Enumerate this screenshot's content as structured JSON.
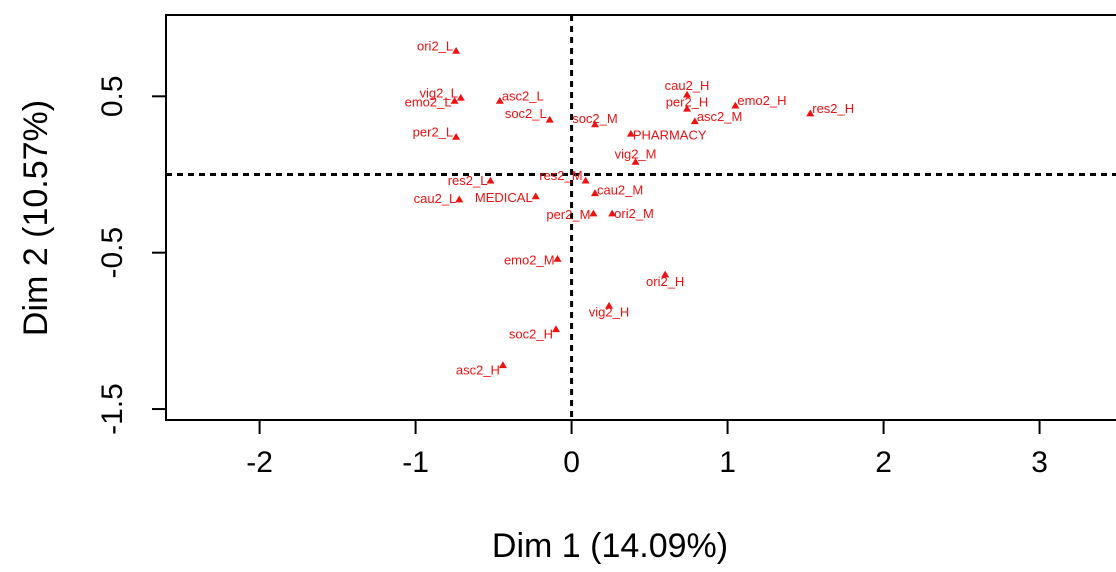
{
  "chart_data": {
    "type": "scatter",
    "x_label": "Dim 1 (14.09%)",
    "y_label": "Dim 2 (10.57%)",
    "color": "#ee1111",
    "xlim": [
      -2.6,
      3.49
    ],
    "ylim": [
      -1.57,
      1.02
    ],
    "xticks": [
      -2,
      -1,
      0,
      1,
      2,
      3
    ],
    "yticks": [
      -1.5,
      -0.5,
      0.5
    ],
    "reference_lines": {
      "x": 0,
      "y": 0
    },
    "labels": [
      "ori2_L",
      "vig2_L",
      "emo2_L",
      "asc2_L",
      "soc2_L",
      "soc2_M",
      "per2_L",
      "cau2_H",
      "per2_H",
      "emo2_H",
      "res2_H",
      "asc2_M",
      "PHARMACY",
      "vig2_M",
      "res2_M",
      "res2_L",
      "cau2_L",
      "MEDICAL",
      "cau2_M",
      "per2_M",
      "ori2_M",
      "emo2_M",
      "ori2_H",
      "vig2_H",
      "soc2_H",
      "asc2_H"
    ],
    "x": [
      -0.74,
      -0.71,
      -0.75,
      -0.46,
      -0.14,
      0.15,
      -0.74,
      0.74,
      0.74,
      1.05,
      1.53,
      0.79,
      0.38,
      0.41,
      0.09,
      -0.52,
      -0.72,
      -0.23,
      0.15,
      0.14,
      0.26,
      -0.09,
      0.6,
      0.24,
      -0.1,
      -0.44
    ],
    "y": [
      0.79,
      0.49,
      0.47,
      0.47,
      0.35,
      0.32,
      0.24,
      0.51,
      0.42,
      0.44,
      0.39,
      0.34,
      0.26,
      0.08,
      -0.04,
      -0.04,
      -0.16,
      -0.14,
      -0.12,
      -0.25,
      -0.25,
      -0.54,
      -0.64,
      -0.84,
      -0.99,
      -1.22
    ]
  }
}
